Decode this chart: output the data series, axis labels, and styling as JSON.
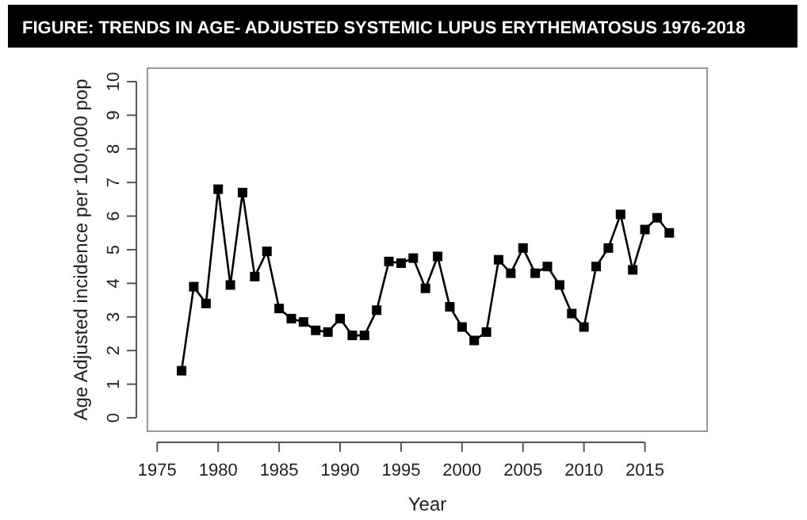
{
  "chart_data": {
    "type": "line",
    "title": "FIGURE: TRENDS IN AGE- ADJUSTED SYSTEMIC LUPUS ERYTHEMATOSUS 1976-2018",
    "xlabel": "Year",
    "ylabel": "Age Adjusted incidence per 100,000 pop",
    "x": [
      1977,
      1978,
      1979,
      1980,
      1981,
      1982,
      1983,
      1984,
      1985,
      1986,
      1987,
      1988,
      1989,
      1990,
      1991,
      1992,
      1993,
      1994,
      1995,
      1996,
      1997,
      1998,
      1999,
      2000,
      2001,
      2002,
      2003,
      2004,
      2005,
      2006,
      2007,
      2008,
      2009,
      2010,
      2011,
      2012,
      2013,
      2014,
      2015,
      2016,
      2017
    ],
    "series": [
      {
        "color": "#000000",
        "values": [
          1.4,
          3.9,
          3.4,
          6.8,
          3.95,
          6.7,
          4.2,
          4.95,
          3.25,
          2.95,
          2.85,
          2.6,
          2.55,
          2.95,
          2.45,
          2.45,
          3.2,
          4.65,
          4.6,
          4.75,
          3.85,
          4.8,
          3.3,
          2.7,
          2.3,
          2.55,
          4.7,
          4.3,
          5.05,
          4.3,
          4.5,
          3.95,
          3.1,
          2.7,
          4.5,
          5.05,
          6.05,
          4.4,
          5.6,
          5.95,
          5.5
        ]
      }
    ],
    "xlim": [
      1974.2,
      2020.1
    ],
    "ylim": [
      -0.4,
      10.4
    ],
    "xticks": [
      1975,
      1980,
      1985,
      1990,
      1995,
      2000,
      2005,
      2010,
      2015
    ],
    "yticks": [
      0,
      1,
      2,
      3,
      4,
      5,
      6,
      7,
      8,
      9,
      10
    ],
    "grid": false,
    "marker": "square",
    "line_style": "solid"
  }
}
